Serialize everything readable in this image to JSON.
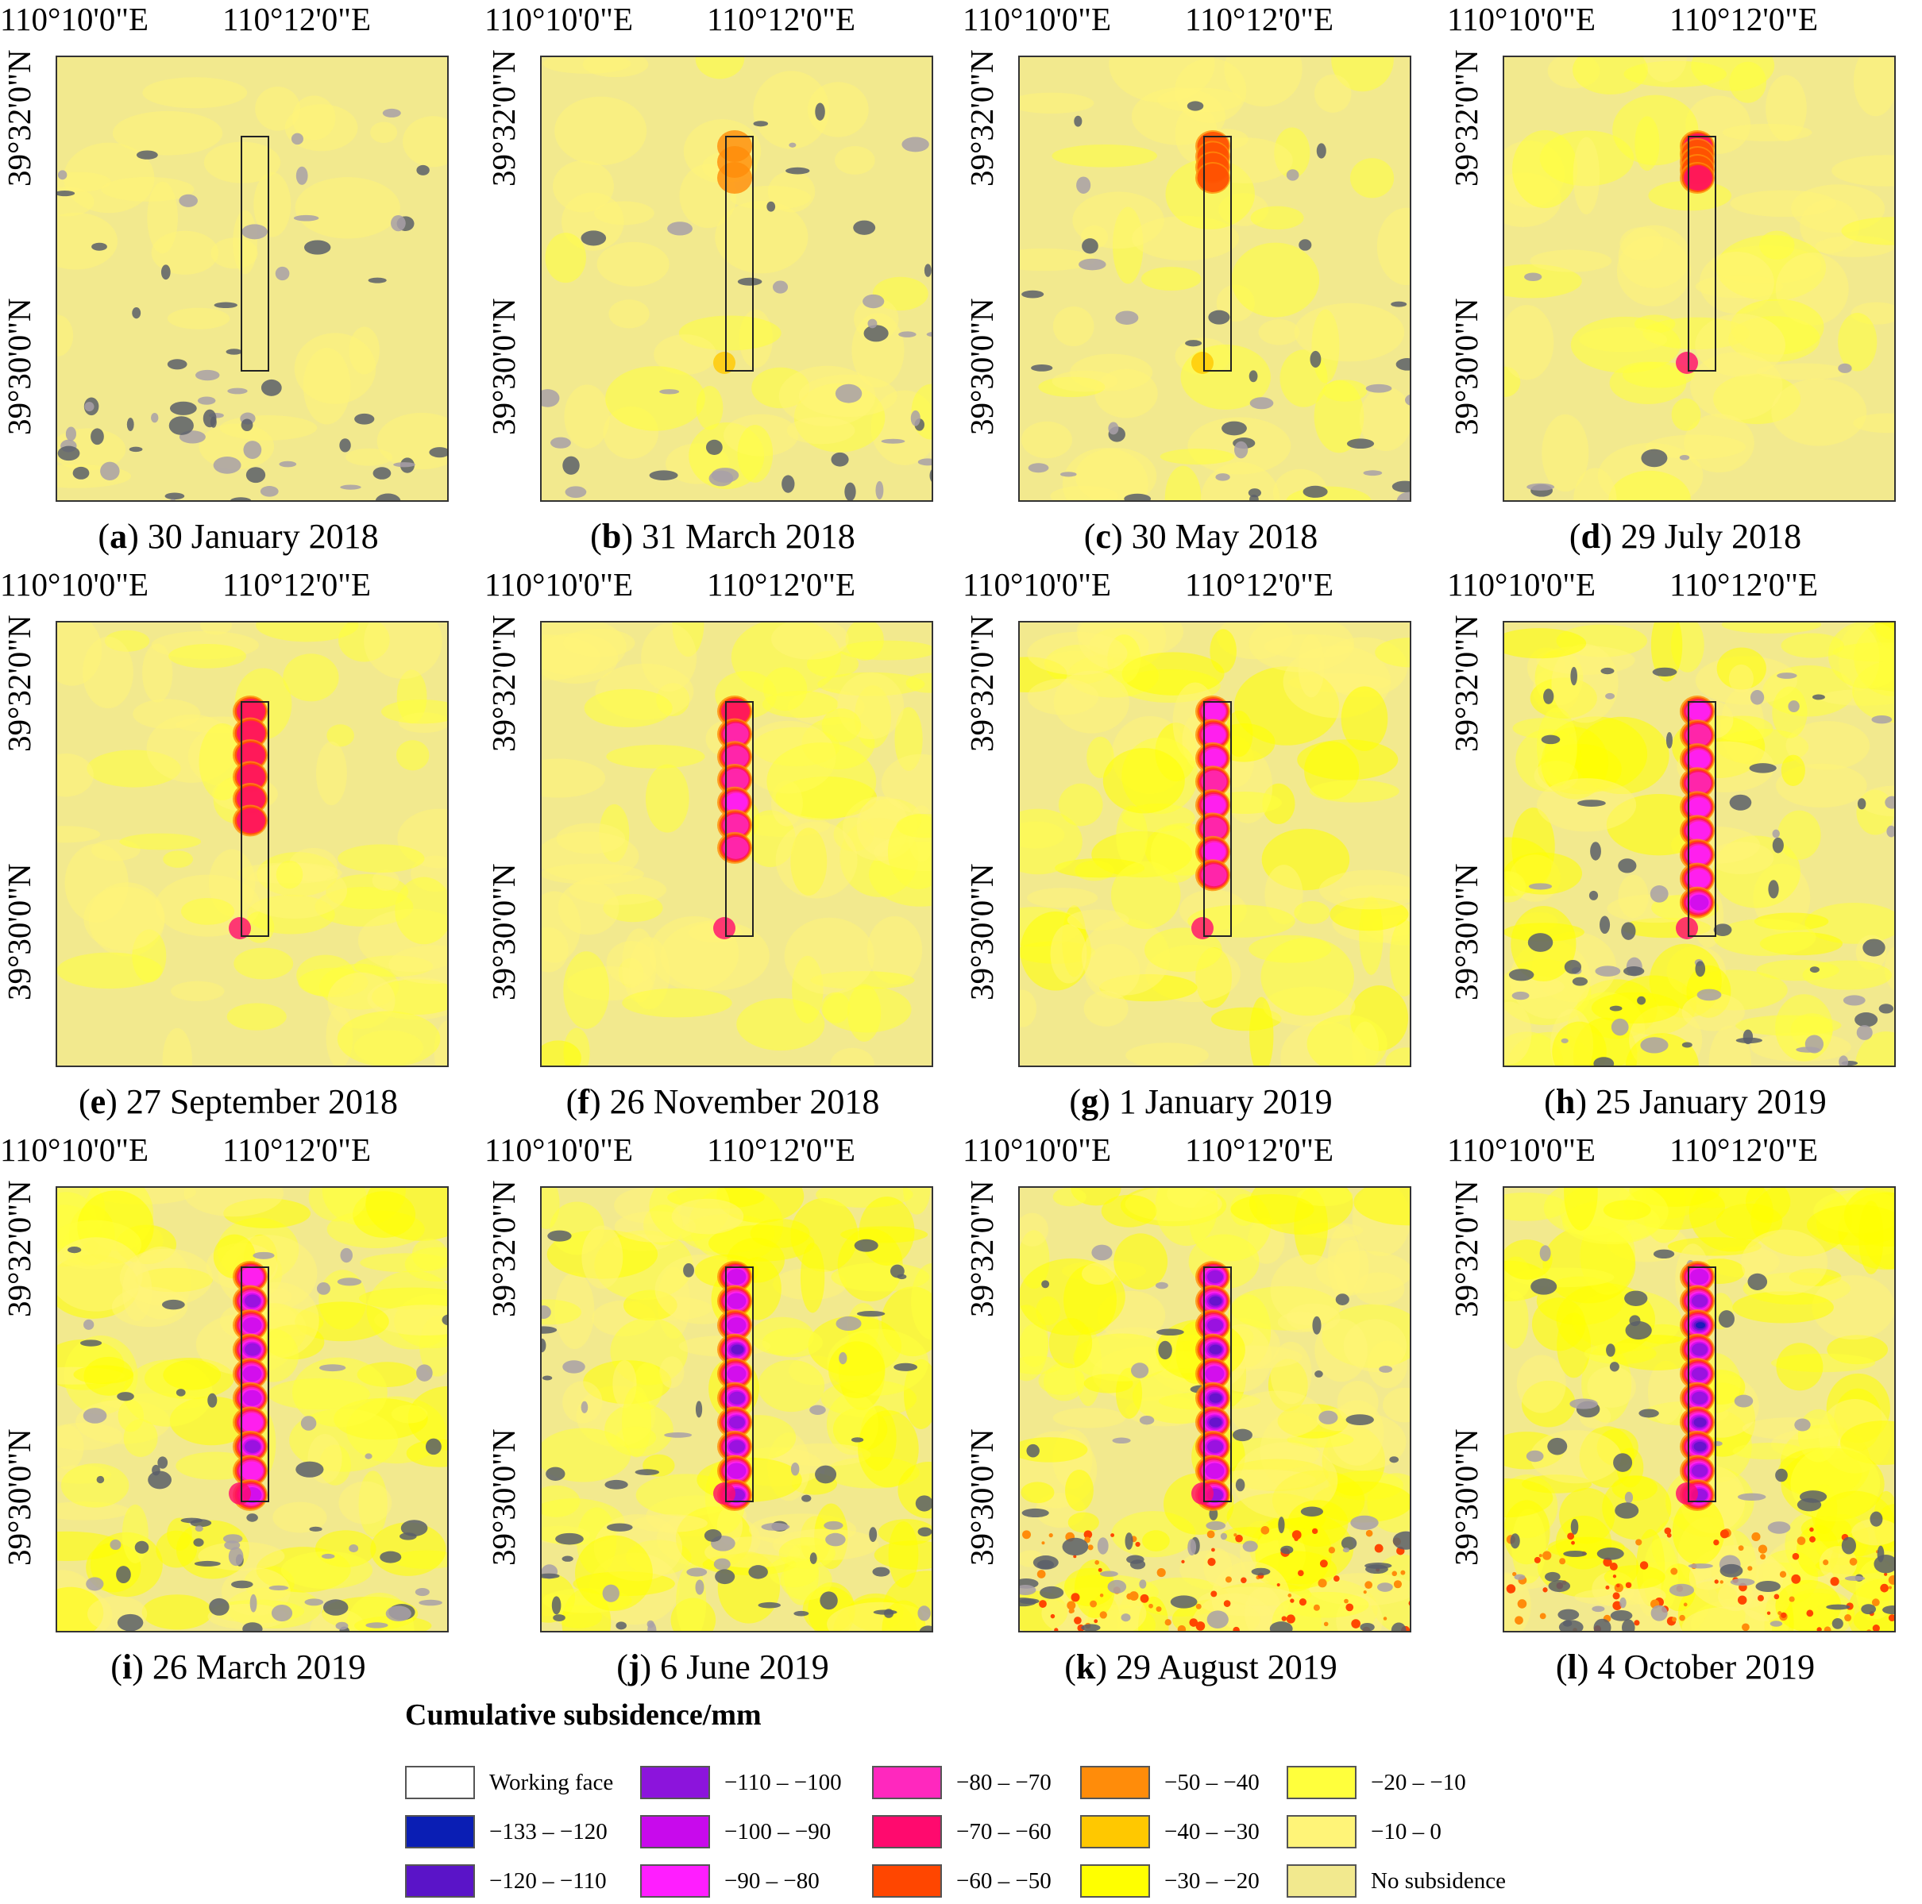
{
  "axes": {
    "lon_labels": [
      "110°10'0\"E",
      "110°12'0\"E"
    ],
    "lat_labels": [
      "39°32'0\"N",
      "39°30'0\"N"
    ]
  },
  "panels": [
    {
      "letter": "a",
      "date": "30 January 2018",
      "stage": 0,
      "noise": 1
    },
    {
      "letter": "b",
      "date": "31 March 2018",
      "stage": 1,
      "noise": 0.6
    },
    {
      "letter": "c",
      "date": "30 May 2018",
      "stage": 2,
      "noise": 0.6
    },
    {
      "letter": "d",
      "date": "29 July 2018",
      "stage": 3,
      "noise": 0.1
    },
    {
      "letter": "e",
      "date": "27 September 2018",
      "stage": 4,
      "noise": 0
    },
    {
      "letter": "f",
      "date": "26 November 2018",
      "stage": 5,
      "noise": 0
    },
    {
      "letter": "g",
      "date": "1 January 2019",
      "stage": 6,
      "noise": 0
    },
    {
      "letter": "h",
      "date": "25 January 2019",
      "stage": 7,
      "noise": 1
    },
    {
      "letter": "i",
      "date": "26 March 2019",
      "stage": 8,
      "noise": 1
    },
    {
      "letter": "j",
      "date": "6 June 2019",
      "stage": 9,
      "noise": 1
    },
    {
      "letter": "k",
      "date": "29 August 2019",
      "stage": 10,
      "noise": 1
    },
    {
      "letter": "l",
      "date": "4 October 2019",
      "stage": 11,
      "noise": 1
    }
  ],
  "legend": {
    "title": "Cumulative subsidence/mm",
    "items": [
      {
        "label": "Working face",
        "color": "#ffffff"
      },
      {
        "label": "−133 – −120",
        "color": "#0a1eb4"
      },
      {
        "label": "−120 – −110",
        "color": "#5a14c8"
      },
      {
        "label": "−110 – −100",
        "color": "#8c14dc"
      },
      {
        "label": "−100 – −90",
        "color": "#c80aec"
      },
      {
        "label": "−90 – −80",
        "color": "#ff1eff"
      },
      {
        "label": "−80 – −70",
        "color": "#ff28be"
      },
      {
        "label": "−70 – −60",
        "color": "#ff0a6e"
      },
      {
        "label": "−60 – −50",
        "color": "#ff4600"
      },
      {
        "label": "−50 – −40",
        "color": "#ff8c0a"
      },
      {
        "label": "−40 – −30",
        "color": "#ffc800"
      },
      {
        "label": "−30 – −20",
        "color": "#ffff00"
      },
      {
        "label": "−20 – −10",
        "color": "#ffff3c"
      },
      {
        "label": "−10 – 0",
        "color": "#fff478"
      },
      {
        "label": "No subsidence",
        "color": "#f2e98e"
      }
    ]
  }
}
